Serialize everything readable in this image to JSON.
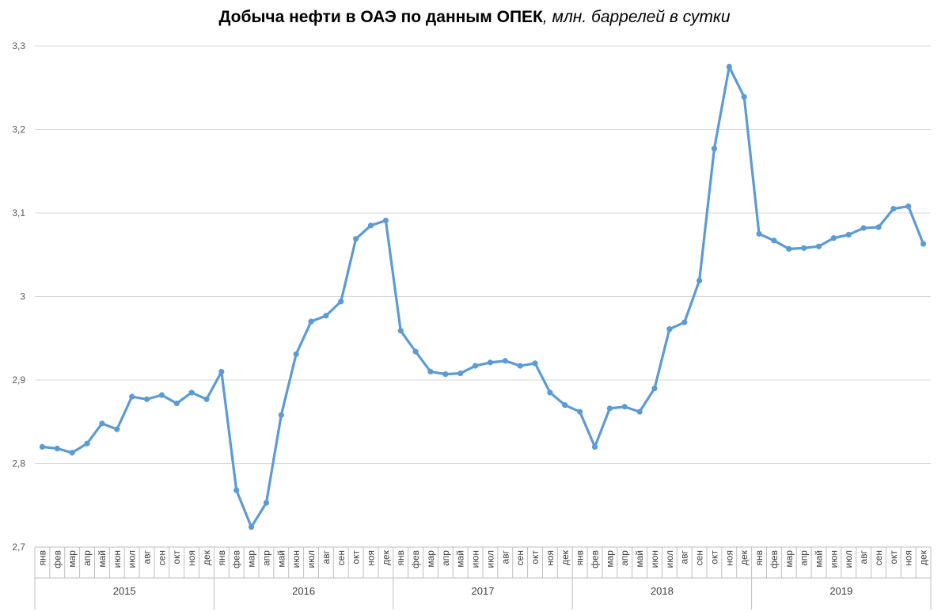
{
  "chart_data": {
    "type": "line",
    "title": "Добыча нефти в ОАЭ по данным ОПЕК",
    "subtitle": ", млн. баррелей в сутки",
    "ylim": [
      2.7,
      3.3
    ],
    "yticks": [
      "2,7",
      "2,8",
      "2,9",
      "3",
      "3,1",
      "3,2",
      "3,3"
    ],
    "grid": true,
    "legend": "none",
    "colors": {
      "line": "#5B9BD5",
      "grid": "#D9D9D9",
      "axis": "#BFBFBF"
    },
    "months": [
      "янв",
      "фев",
      "мар",
      "апр",
      "май",
      "июн",
      "июл",
      "авг",
      "сен",
      "окт",
      "ноя",
      "дек"
    ],
    "years": [
      "2015",
      "2016",
      "2017",
      "2018",
      "2019"
    ],
    "series": [
      {
        "values": [
          2.82,
          2.818,
          2.813,
          2.824,
          2.848,
          2.841,
          2.88,
          2.877,
          2.882,
          2.872,
          2.885,
          2.877,
          2.91,
          2.768,
          2.724,
          2.753,
          2.858,
          2.931,
          2.97,
          2.977,
          2.994,
          3.069,
          3.085,
          3.091,
          2.959,
          2.934,
          2.91,
          2.907,
          2.908,
          2.917,
          2.921,
          2.923,
          2.917,
          2.92,
          2.885,
          2.87,
          2.862,
          2.82,
          2.866,
          2.868,
          2.862,
          2.89,
          2.961,
          2.969,
          3.019,
          3.177,
          3.275,
          3.239,
          3.075,
          3.067,
          3.057,
          3.058,
          3.06,
          3.07,
          3.074,
          3.082,
          3.083,
          3.105,
          3.108,
          3.063
        ]
      }
    ]
  }
}
